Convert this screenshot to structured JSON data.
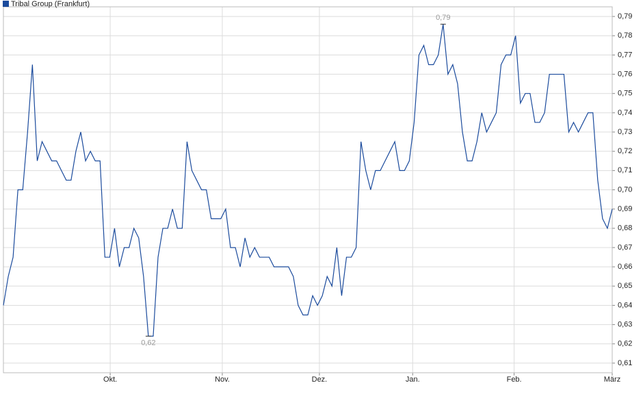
{
  "chart_data": {
    "type": "line",
    "series": [
      {
        "name": "Tribal Group (Frankfurt)",
        "color": "#1a4a9c",
        "values": [
          0.64,
          0.655,
          0.665,
          0.7,
          0.7,
          0.73,
          0.765,
          0.715,
          0.725,
          0.72,
          0.715,
          0.715,
          0.71,
          0.705,
          0.705,
          0.72,
          0.73,
          0.715,
          0.72,
          0.715,
          0.715,
          0.665,
          0.665,
          0.68,
          0.66,
          0.67,
          0.67,
          0.68,
          0.675,
          0.655,
          0.624,
          0.624,
          0.665,
          0.68,
          0.68,
          0.69,
          0.68,
          0.68,
          0.725,
          0.71,
          0.705,
          0.7,
          0.7,
          0.685,
          0.685,
          0.685,
          0.69,
          0.67,
          0.67,
          0.66,
          0.675,
          0.665,
          0.67,
          0.665,
          0.665,
          0.665,
          0.66,
          0.66,
          0.66,
          0.66,
          0.655,
          0.64,
          0.635,
          0.635,
          0.645,
          0.64,
          0.645,
          0.655,
          0.65,
          0.67,
          0.645,
          0.665,
          0.665,
          0.67,
          0.725,
          0.71,
          0.7,
          0.71,
          0.71,
          0.715,
          0.72,
          0.725,
          0.71,
          0.71,
          0.715,
          0.735,
          0.77,
          0.775,
          0.765,
          0.765,
          0.77,
          0.786,
          0.76,
          0.765,
          0.755,
          0.73,
          0.715,
          0.715,
          0.725,
          0.74,
          0.73,
          0.735,
          0.74,
          0.765,
          0.77,
          0.77,
          0.78,
          0.745,
          0.75,
          0.75,
          0.735,
          0.735,
          0.74,
          0.76,
          0.76,
          0.76,
          0.76,
          0.73,
          0.735,
          0.73,
          0.735,
          0.74,
          0.74,
          0.705,
          0.685,
          0.68,
          0.69
        ]
      }
    ],
    "annotations": [
      {
        "label": "0,79",
        "value": 0.786
      },
      {
        "label": "0,62",
        "value": 0.624
      }
    ],
    "xlim": [
      0,
      126
    ],
    "xticks": [
      {
        "value": 22.1,
        "label": "Okt."
      },
      {
        "value": 45.3,
        "label": "Nov."
      },
      {
        "value": 65.4,
        "label": "Dez."
      },
      {
        "value": 84.7,
        "label": "Jan."
      },
      {
        "value": 105.7,
        "label": "Feb."
      },
      {
        "value": 126.1,
        "label": "März"
      }
    ],
    "ylim": [
      0.605,
      0.795
    ],
    "yticks": [
      {
        "value": 0.61,
        "label": "0,61"
      },
      {
        "value": 0.62,
        "label": "0,62"
      },
      {
        "value": 0.63,
        "label": "0,63"
      },
      {
        "value": 0.64,
        "label": "0,64"
      },
      {
        "value": 0.65,
        "label": "0,65"
      },
      {
        "value": 0.66,
        "label": "0,66"
      },
      {
        "value": 0.67,
        "label": "0,67"
      },
      {
        "value": 0.68,
        "label": "0,68"
      },
      {
        "value": 0.69,
        "label": "0,69"
      },
      {
        "value": 0.7,
        "label": "0,70"
      },
      {
        "value": 0.71,
        "label": "0,71"
      },
      {
        "value": 0.72,
        "label": "0,72"
      },
      {
        "value": 0.73,
        "label": "0,73"
      },
      {
        "value": 0.74,
        "label": "0,74"
      },
      {
        "value": 0.75,
        "label": "0,75"
      },
      {
        "value": 0.76,
        "label": "0,76"
      },
      {
        "value": 0.77,
        "label": "0,77"
      },
      {
        "value": 0.78,
        "label": "0,78"
      },
      {
        "value": 0.79,
        "label": "0,79"
      }
    ],
    "grid": true
  }
}
